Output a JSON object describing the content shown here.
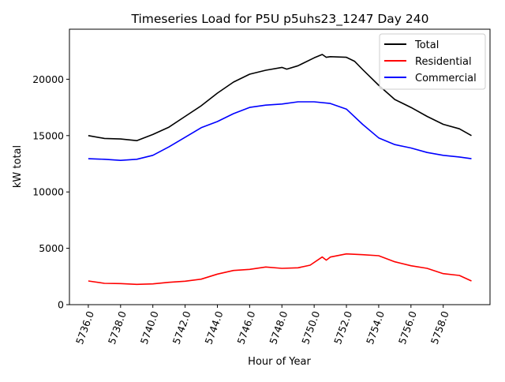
{
  "chart_data": {
    "type": "line",
    "title": "Timeseries Load for P5U p5uhs23_1247  Day 240",
    "xlabel": "Hour of Year",
    "ylabel": "kW total",
    "xlim": [
      5734.83,
      5760.9
    ],
    "ylim": [
      0,
      24440
    ],
    "xticks": [
      5736,
      5738,
      5740,
      5742,
      5744,
      5746,
      5748,
      5750,
      5752,
      5754,
      5756,
      5758
    ],
    "xtick_labels": [
      "5736.0",
      "5738.0",
      "5740.0",
      "5742.0",
      "5744.0",
      "5746.0",
      "5748.0",
      "5750.0",
      "5752.0",
      "5754.0",
      "5756.0",
      "5758.0"
    ],
    "yticks": [
      0,
      5000,
      10000,
      15000,
      20000
    ],
    "ytick_labels": [
      "0",
      "5000",
      "10000",
      "15000",
      "20000"
    ],
    "grid": false,
    "legend_position": "top-right",
    "series": [
      {
        "name": "Total",
        "color": "#000000",
        "x": [
          5736,
          5737,
          5738,
          5739,
          5740,
          5741,
          5742,
          5743,
          5744,
          5745,
          5746,
          5747,
          5748,
          5748.3,
          5749,
          5750,
          5750.5,
          5750.75,
          5751,
          5752,
          5752.5,
          5753,
          5754,
          5755,
          5756,
          5757,
          5758,
          5759,
          5759.75
        ],
        "y": [
          15000,
          14750,
          14700,
          14550,
          15100,
          15750,
          16700,
          17650,
          18770,
          19750,
          20450,
          20800,
          21050,
          20900,
          21200,
          21900,
          22200,
          21950,
          22000,
          21950,
          21600,
          20870,
          19470,
          18200,
          17500,
          16700,
          16000,
          15600,
          15000
        ]
      },
      {
        "name": "Residential",
        "color": "#ff0000",
        "x": [
          5736,
          5737,
          5738,
          5739,
          5740,
          5741,
          5742,
          5743,
          5744,
          5745,
          5746,
          5747,
          5748,
          5749,
          5749.75,
          5750.5,
          5750.75,
          5751,
          5752,
          5753,
          5754,
          5755,
          5756,
          5757,
          5758,
          5759,
          5759.75
        ],
        "y": [
          2100,
          1890,
          1870,
          1800,
          1840,
          1980,
          2080,
          2260,
          2710,
          3030,
          3130,
          3340,
          3220,
          3270,
          3500,
          4230,
          3950,
          4220,
          4500,
          4430,
          4340,
          3800,
          3450,
          3220,
          2750,
          2590,
          2100
        ]
      },
      {
        "name": "Commercial",
        "color": "#0000ff",
        "x": [
          5736,
          5737,
          5738,
          5739,
          5740,
          5741,
          5742,
          5743,
          5744,
          5745,
          5746,
          5747,
          5748,
          5749,
          5750,
          5751,
          5752,
          5753,
          5754,
          5755,
          5756,
          5757,
          5758,
          5759,
          5759.75
        ],
        "y": [
          12950,
          12900,
          12800,
          12900,
          13250,
          14000,
          14850,
          15700,
          16250,
          16950,
          17500,
          17700,
          17800,
          18000,
          18000,
          17850,
          17350,
          16000,
          14800,
          14200,
          13900,
          13500,
          13250,
          13100,
          12950
        ]
      }
    ]
  }
}
